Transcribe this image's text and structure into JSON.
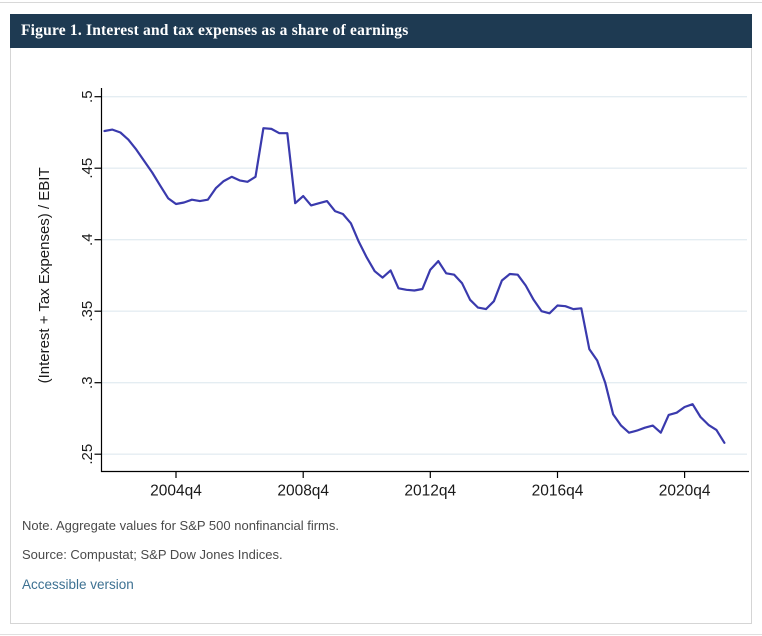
{
  "header": {
    "title": "Figure 1. Interest and tax expenses as a share of earnings"
  },
  "colors": {
    "header_background": "#1e3a52",
    "header_text": "#ffffff",
    "line": "#3a3aad",
    "gridline": "#e4edf2",
    "axis": "#000000",
    "tick_label": "#1a1a1a",
    "note_text": "#4a4a4a",
    "link": "#3d7192"
  },
  "chart_data": {
    "type": "line",
    "title": "",
    "xlabel": "",
    "ylabel": "(Interest + Tax Expenses) / EBIT",
    "ylim": [
      0.25,
      0.5
    ],
    "grid": "horizontal",
    "legend": "none",
    "yticks": [
      0.5,
      0.45,
      0.4,
      0.35,
      0.3,
      0.25
    ],
    "ytick_labels": [
      ".5",
      ".45",
      ".4",
      ".35",
      ".3",
      ".25"
    ],
    "xtick_labels": [
      "2004q4",
      "2008q4",
      "2012q4",
      "2016q4",
      "2020q4"
    ],
    "categories": [
      "2002q3",
      "2002q4",
      "2003q1",
      "2003q2",
      "2003q3",
      "2003q4",
      "2004q1",
      "2004q2",
      "2004q3",
      "2004q4",
      "2005q1",
      "2005q2",
      "2005q3",
      "2005q4",
      "2006q1",
      "2006q2",
      "2006q3",
      "2006q4",
      "2007q1",
      "2007q2",
      "2007q3",
      "2007q4",
      "2008q1",
      "2008q2",
      "2008q3",
      "2008q4",
      "2009q1",
      "2009q2",
      "2009q3",
      "2009q4",
      "2010q1",
      "2010q2",
      "2010q3",
      "2010q4",
      "2011q1",
      "2011q2",
      "2011q3",
      "2011q4",
      "2012q1",
      "2012q2",
      "2012q3",
      "2012q4",
      "2013q1",
      "2013q2",
      "2013q3",
      "2013q4",
      "2014q1",
      "2014q2",
      "2014q3",
      "2014q4",
      "2015q1",
      "2015q2",
      "2015q3",
      "2015q4",
      "2016q1",
      "2016q2",
      "2016q3",
      "2016q4",
      "2017q1",
      "2017q2",
      "2017q3",
      "2017q4",
      "2018q1",
      "2018q2",
      "2018q3",
      "2018q4",
      "2019q1",
      "2019q2",
      "2019q3",
      "2019q4",
      "2020q1",
      "2020q2",
      "2020q3",
      "2020q4",
      "2021q1",
      "2021q2",
      "2021q3",
      "2021q4",
      "2022q1"
    ],
    "series": [
      {
        "name": "(Interest + Tax Expenses) / EBIT",
        "values": [
          0.476,
          0.477,
          0.475,
          0.47,
          0.463,
          0.455,
          0.447,
          0.438,
          0.429,
          0.425,
          0.426,
          0.428,
          0.427,
          0.428,
          0.436,
          0.441,
          0.444,
          0.4415,
          0.4405,
          0.444,
          0.478,
          0.4775,
          0.4745,
          0.4745,
          0.4255,
          0.4305,
          0.424,
          0.4255,
          0.427,
          0.42,
          0.418,
          0.4115,
          0.3985,
          0.3875,
          0.378,
          0.3735,
          0.3785,
          0.366,
          0.365,
          0.3645,
          0.3655,
          0.379,
          0.385,
          0.3765,
          0.3755,
          0.3695,
          0.358,
          0.3525,
          0.3515,
          0.357,
          0.3715,
          0.376,
          0.3755,
          0.368,
          0.358,
          0.35,
          0.3485,
          0.354,
          0.3535,
          0.3515,
          0.352,
          0.3235,
          0.3155,
          0.3,
          0.278,
          0.27,
          0.265,
          0.2665,
          0.2685,
          0.27,
          0.265,
          0.2775,
          0.279,
          0.283,
          0.285,
          0.276,
          0.2705,
          0.267,
          0.258
        ]
      }
    ]
  },
  "notes": {
    "note": "Note. Aggregate values for S&P 500 nonfinancial firms.",
    "source": "Source: Compustat; S&P Dow Jones Indices.",
    "link_label": "Accessible version"
  }
}
